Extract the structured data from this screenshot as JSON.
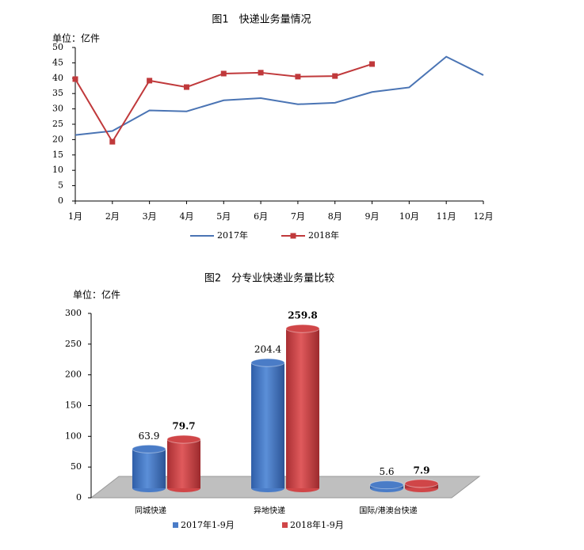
{
  "chart_data": [
    {
      "type": "line",
      "title": "图1　快递业务量情况",
      "unit_label": "单位：亿件",
      "categories": [
        "1月",
        "2月",
        "3月",
        "4月",
        "5月",
        "6月",
        "7月",
        "8月",
        "9月",
        "10月",
        "11月",
        "12月"
      ],
      "series": [
        {
          "name": "2017年",
          "color": "#4a74b4",
          "marker": "none",
          "values": [
            21.5,
            22.8,
            29.5,
            29.2,
            32.8,
            33.5,
            31.5,
            32,
            35.5,
            37,
            47,
            41
          ]
        },
        {
          "name": "2018年",
          "color": "#c0393b",
          "marker": "square",
          "values": [
            39.7,
            19.3,
            39.2,
            37.1,
            41.5,
            41.8,
            40.5,
            40.7,
            44.6,
            null,
            null,
            null
          ]
        }
      ],
      "ylim": [
        0,
        50
      ],
      "yticks": [
        0,
        5,
        10,
        15,
        20,
        25,
        30,
        35,
        40,
        45,
        50
      ],
      "grid": false,
      "legend": "bottom"
    },
    {
      "type": "bar",
      "title": "图2　分专业快递业务量比较",
      "unit_label": "单位：亿件",
      "categories": [
        "同城快递",
        "异地快递",
        "国际/港澳台快递"
      ],
      "series": [
        {
          "name": "2017年1-9月",
          "color": "#4a7cc7",
          "values": [
            63.9,
            204.4,
            5.6
          ]
        },
        {
          "name": "2018年1-9月",
          "color": "#d04648",
          "values": [
            79.7,
            259.8,
            7.9
          ]
        }
      ],
      "ylim": [
        0,
        300
      ],
      "yticks": [
        0,
        50,
        100,
        150,
        200,
        250,
        300
      ],
      "grid": false,
      "legend": "bottom"
    }
  ]
}
